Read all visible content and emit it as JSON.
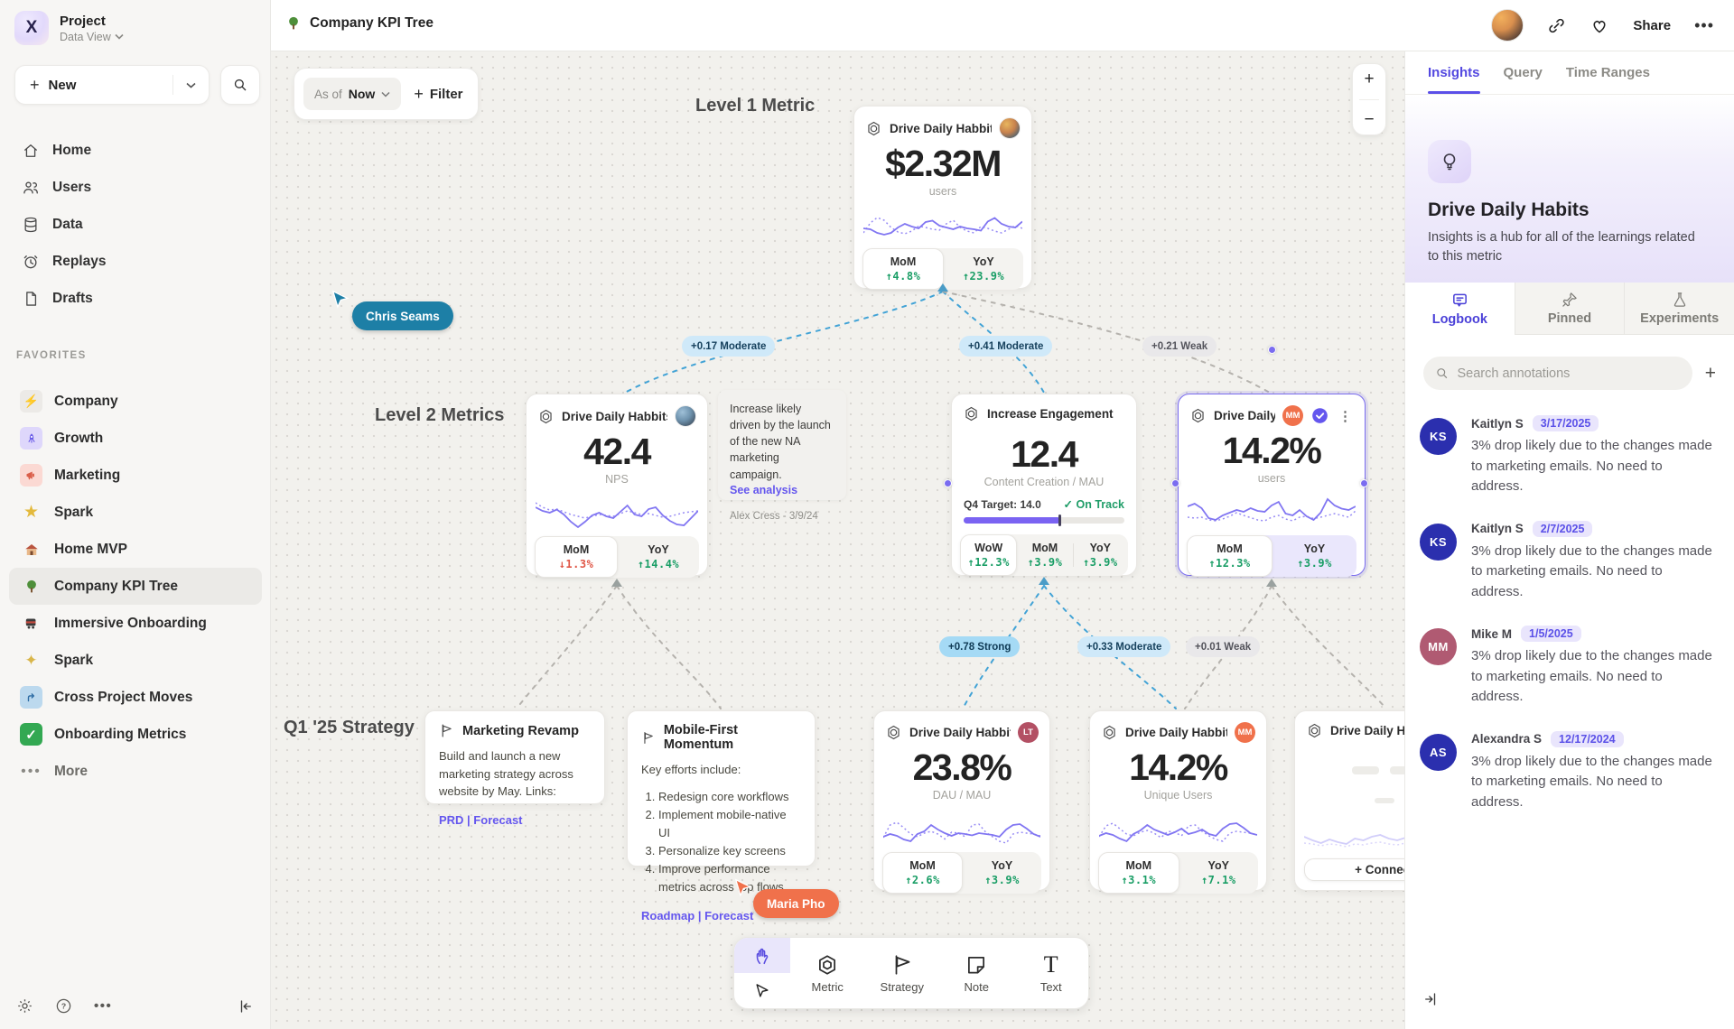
{
  "sidebar": {
    "project_name": "Project",
    "project_view": "Data View",
    "new_label": "New",
    "nav": [
      {
        "icon": "home-icon",
        "label": "Home"
      },
      {
        "icon": "users-icon",
        "label": "Users"
      },
      {
        "icon": "database-icon",
        "label": "Data"
      },
      {
        "icon": "replay-clock-icon",
        "label": "Replays"
      },
      {
        "icon": "document-icon",
        "label": "Drafts"
      }
    ],
    "favorites_label": "FAVORITES",
    "favorites": [
      {
        "icon": "lightning-icon",
        "label": "Company"
      },
      {
        "icon": "rocket-icon",
        "label": "Growth"
      },
      {
        "icon": "megaphone-icon",
        "label": "Marketing"
      },
      {
        "icon": "star-icon",
        "label": "Spark"
      },
      {
        "icon": "house-icon",
        "label": "Home MVP"
      },
      {
        "icon": "tree-icon",
        "label": "Company KPI Tree",
        "active": true
      },
      {
        "icon": "train-icon",
        "label": "Immersive Onboarding"
      },
      {
        "icon": "sparkles-icon",
        "label": "Spark"
      },
      {
        "icon": "arrow-up-right-icon",
        "label": "Cross Project Moves"
      },
      {
        "icon": "check-icon",
        "label": "Onboarding Metrics"
      }
    ],
    "more_label": "More"
  },
  "topbar": {
    "title": "Company KPI Tree",
    "share_label": "Share"
  },
  "canvas": {
    "asof_label": "As of",
    "asof_value": "Now",
    "filter_label": "Filter",
    "zoom_in": "+",
    "zoom_out": "−",
    "section_labels": {
      "level1": "Level 1 Metric",
      "level2": "Level 2 Metrics",
      "q1": "Q1 '25 Strategy"
    },
    "cursors": [
      {
        "name": "Chris Seams",
        "color": "#1d7fa6"
      },
      {
        "name": "Maria Pho",
        "color": "#f0714b"
      }
    ],
    "edge_labels": [
      {
        "text": "+0.17 Moderate",
        "strength": "moderate"
      },
      {
        "text": "+0.41 Moderate",
        "strength": "moderate"
      },
      {
        "text": "+0.21 Weak",
        "strength": "weak"
      },
      {
        "text": "+0.78 Strong",
        "strength": "strong"
      },
      {
        "text": "+0.33 Moderate",
        "strength": "moderate"
      },
      {
        "text": "+0.01 Weak",
        "strength": "weak"
      }
    ],
    "cards": {
      "level1": {
        "title": "Drive Daily Habbits",
        "value": "$2.32M",
        "unit": "users",
        "stats": [
          {
            "label": "MoM",
            "value": "↑4.8%",
            "trend": "up"
          },
          {
            "label": "YoY",
            "value": "↑23.9%",
            "trend": "up"
          }
        ],
        "spark": {
          "solid": [
            40,
            38,
            30,
            26,
            30,
            42,
            50,
            44,
            40,
            54,
            57,
            46,
            42,
            38,
            44,
            40,
            38,
            35,
            55,
            63,
            50,
            44,
            42,
            55
          ],
          "dotted": [
            30,
            52,
            64,
            58,
            42,
            32,
            28,
            34,
            45,
            42,
            38,
            36,
            50,
            58,
            42,
            34,
            30,
            44,
            40,
            34,
            30,
            38,
            46,
            40
          ]
        }
      },
      "l2_nps": {
        "title": "Drive Daily Habbits",
        "value": "42.4",
        "unit": "NPS",
        "stats": [
          {
            "label": "MoM",
            "value": "↓1.3%",
            "trend": "down"
          },
          {
            "label": "YoY",
            "value": "↑14.4%",
            "trend": "up"
          }
        ],
        "spark": {
          "solid": [
            60,
            52,
            48,
            55,
            44,
            28,
            16,
            28,
            42,
            48,
            40,
            36,
            50,
            64,
            44,
            40,
            56,
            60,
            42,
            30,
            22,
            20,
            36,
            52
          ],
          "dotted": [
            70,
            60,
            54,
            56,
            50,
            44,
            40,
            36,
            40,
            44,
            42,
            40,
            46,
            52,
            48,
            44,
            46,
            42,
            38,
            40,
            44,
            48,
            50,
            52
          ]
        }
      },
      "note": {
        "body": "Increase likely driven by the launch of the new NA marketing campaign.",
        "link": "See analysis",
        "byline": "Alex Cress - 3/9/24"
      },
      "engagement": {
        "title": "Increase Engagement",
        "value": "12.4",
        "unit": "Content Creation / MAU",
        "target_label": "Q4 Target: 14.0",
        "status": "On Track",
        "progress_pct": 60,
        "stats": [
          {
            "label": "WoW",
            "value": "↑12.3%",
            "trend": "up"
          },
          {
            "label": "MoM",
            "value": "↑3.9%",
            "trend": "up"
          },
          {
            "label": "YoY",
            "value": "↑3.9%",
            "trend": "up"
          }
        ]
      },
      "selected": {
        "title": "Drive Daily Habb..",
        "badge": "MM",
        "value": "14.2%",
        "unit": "users",
        "stats": [
          {
            "label": "MoM",
            "value": "↑12.3%",
            "trend": "up"
          },
          {
            "label": "YoY",
            "value": "↑3.9%",
            "trend": "up"
          }
        ],
        "spark": {
          "solid": [
            60,
            66,
            56,
            34,
            30,
            40,
            46,
            52,
            48,
            56,
            50,
            48,
            62,
            70,
            44,
            40,
            52,
            38,
            30,
            46,
            76,
            62,
            55,
            52,
            60
          ],
          "dotted": [
            36,
            34,
            36,
            30,
            28,
            32,
            38,
            46,
            40,
            35,
            30,
            28,
            36,
            40,
            32,
            28,
            36,
            38,
            33,
            36,
            40,
            44,
            40,
            36,
            50
          ]
        }
      },
      "strategy1": {
        "title": "Marketing Revamp",
        "body": "Build and launch a new marketing strategy across website by May. Links:",
        "links_text": "PRD | Forecast"
      },
      "strategy2": {
        "title": "Mobile-First Momentum",
        "intro": "Key efforts include:",
        "items": [
          "Redesign core workflows",
          "Implement mobile-native UI",
          "Personalize key screens",
          "Improve performance metrics across top flows"
        ],
        "links_text": "Roadmap | Forecast"
      },
      "q1_dau": {
        "title": "Drive Daily Habbits",
        "badge": "LT",
        "value": "23.8%",
        "unit": "DAU / MAU",
        "stats": [
          {
            "label": "MoM",
            "value": "↑2.6%",
            "trend": "up"
          },
          {
            "label": "YoY",
            "value": "↑3.9%",
            "trend": "up"
          }
        ],
        "spark": {
          "solid": [
            30,
            36,
            32,
            24,
            20,
            36,
            42,
            56,
            46,
            38,
            32,
            38,
            36,
            33,
            38,
            36,
            34,
            30,
            46,
            56,
            58,
            48,
            36,
            30
          ],
          "dotted": [
            28,
            56,
            62,
            50,
            36,
            30,
            38,
            42,
            36,
            25,
            40,
            38,
            30,
            56,
            58,
            40,
            30,
            20,
            16,
            36,
            40,
            38,
            36,
            32
          ]
        }
      },
      "q1_unique": {
        "title": "Drive Daily Habbits",
        "badge": "MM",
        "value": "14.2%",
        "unit": "Unique Users",
        "stats": [
          {
            "label": "MoM",
            "value": "↑3.1%",
            "trend": "up"
          },
          {
            "label": "YoY",
            "value": "↑7.1%",
            "trend": "up"
          }
        ],
        "spark": {
          "solid": [
            32,
            38,
            34,
            26,
            20,
            36,
            44,
            56,
            46,
            40,
            34,
            40,
            48,
            36,
            40,
            46,
            36,
            32,
            48,
            58,
            60,
            50,
            38,
            34
          ],
          "dotted": [
            30,
            54,
            60,
            48,
            36,
            32,
            40,
            44,
            38,
            28,
            42,
            40,
            32,
            54,
            56,
            42,
            32,
            24,
            20,
            38,
            42,
            40,
            38,
            34
          ]
        }
      },
      "q1_partial": {
        "title": "Drive Daily Habbits",
        "connect_label": "+ Connect",
        "spark": {
          "solid": [
            44,
            36,
            30,
            38,
            32,
            28,
            40,
            36,
            44,
            48,
            40,
            36,
            42,
            38,
            34,
            52,
            44,
            38,
            36,
            40
          ],
          "dotted": [
            30,
            28,
            24,
            28,
            26,
            22,
            28,
            26,
            30,
            32,
            28,
            26,
            30,
            28,
            26,
            32,
            30,
            28,
            26,
            28
          ]
        }
      }
    }
  },
  "toolbar": {
    "tools": [
      {
        "icon": "metric-hexagon-icon",
        "label": "Metric"
      },
      {
        "icon": "strategy-flag-icon",
        "label": "Strategy"
      },
      {
        "icon": "note-icon",
        "label": "Note"
      },
      {
        "icon": "text-icon",
        "label": "Text"
      }
    ]
  },
  "panel": {
    "tabs": [
      "Insights",
      "Query",
      "Time Ranges"
    ],
    "active_tab": "Insights",
    "title": "Drive Daily Habits",
    "description": "Insights is a hub for all of the learnings related to this metric",
    "subtabs": [
      "Logbook",
      "Pinned",
      "Experiments"
    ],
    "active_subtab": "Logbook",
    "search_placeholder": "Search annotations",
    "annotations": [
      {
        "initials": "KS",
        "name": "Kaitlyn S",
        "date": "3/17/2025",
        "color": "#2b2fae",
        "text": "3% drop likely due to the changes made to marketing emails. No need to address."
      },
      {
        "initials": "KS",
        "name": "Kaitlyn S",
        "date": "2/7/2025",
        "color": "#2b2fae",
        "text": "3% drop likely due to the changes made to marketing emails. No need to address."
      },
      {
        "initials": "MM",
        "name": "Mike M",
        "date": "1/5/2025",
        "color": "#b05a72",
        "text": "3% drop likely due to the changes made to marketing emails. No need to address."
      },
      {
        "initials": "AS",
        "name": "Alexandra S",
        "date": "12/17/2024",
        "color": "#2b2fae",
        "text": "3% drop likely due to the changes made to marketing emails. No need to address."
      }
    ]
  },
  "colors": {
    "accent": "#6456ee",
    "positive": "#1a9e66",
    "negative": "#e05747",
    "selection": "#7a6cf0",
    "edge_blue": "#42a3d6",
    "edge_gray": "#b5b2ad"
  }
}
